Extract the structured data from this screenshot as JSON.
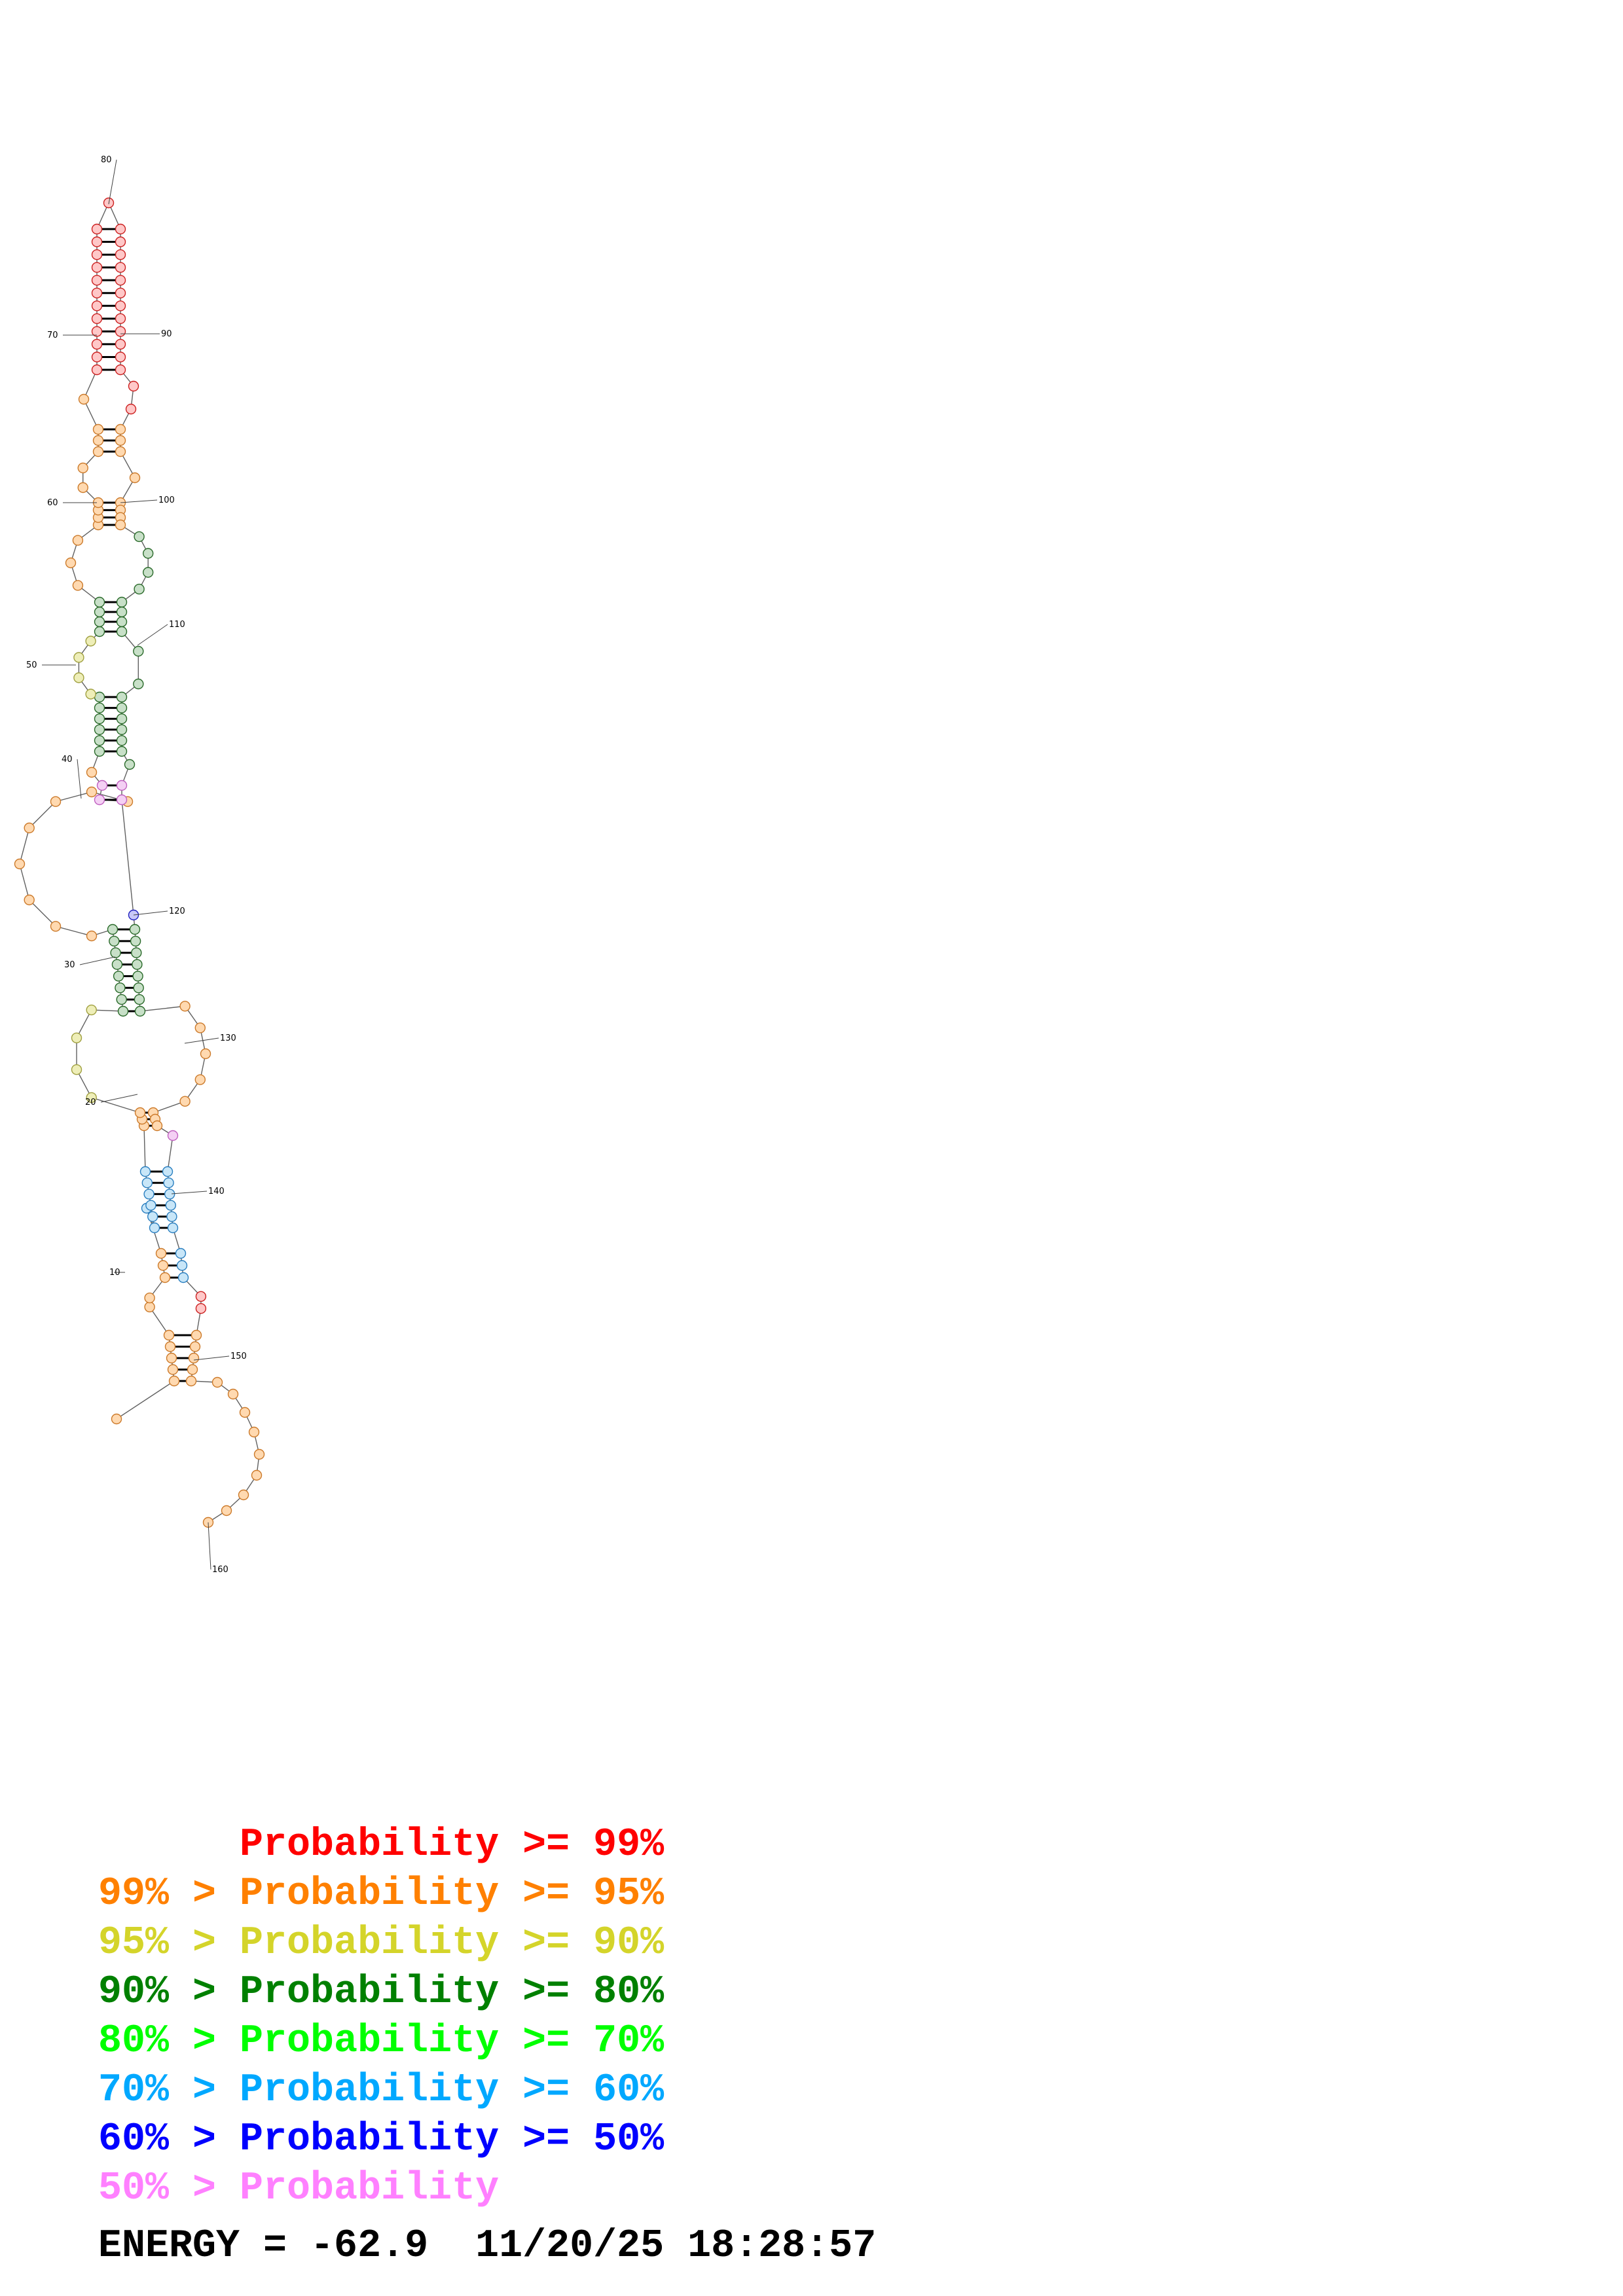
{
  "structure": {
    "position_labels": [
      "10",
      "20",
      "30",
      "40",
      "50",
      "60",
      "70",
      "80",
      "90",
      "100",
      "110",
      "120",
      "130",
      "140",
      "150",
      "160"
    ]
  },
  "legend": {
    "lines": [
      {
        "text": "      Probability >= 99%",
        "color": "#ff0000"
      },
      {
        "text": "99% > Probability >= 95%",
        "color": "#ff8000"
      },
      {
        "text": "95% > Probability >= 90%",
        "color": "#d4d42a"
      },
      {
        "text": "90% > Probability >= 80%",
        "color": "#008000"
      },
      {
        "text": "80% > Probability >= 70%",
        "color": "#00ff00"
      },
      {
        "text": "70% > Probability >= 60%",
        "color": "#00a8ff"
      },
      {
        "text": "60% > Probability >= 50%",
        "color": "#0000ff"
      },
      {
        "text": "50% > Probability",
        "color": "#ff80ff"
      }
    ]
  },
  "footer": {
    "energy_text": "ENERGY = -62.9  11/20/25 18:28:57"
  }
}
